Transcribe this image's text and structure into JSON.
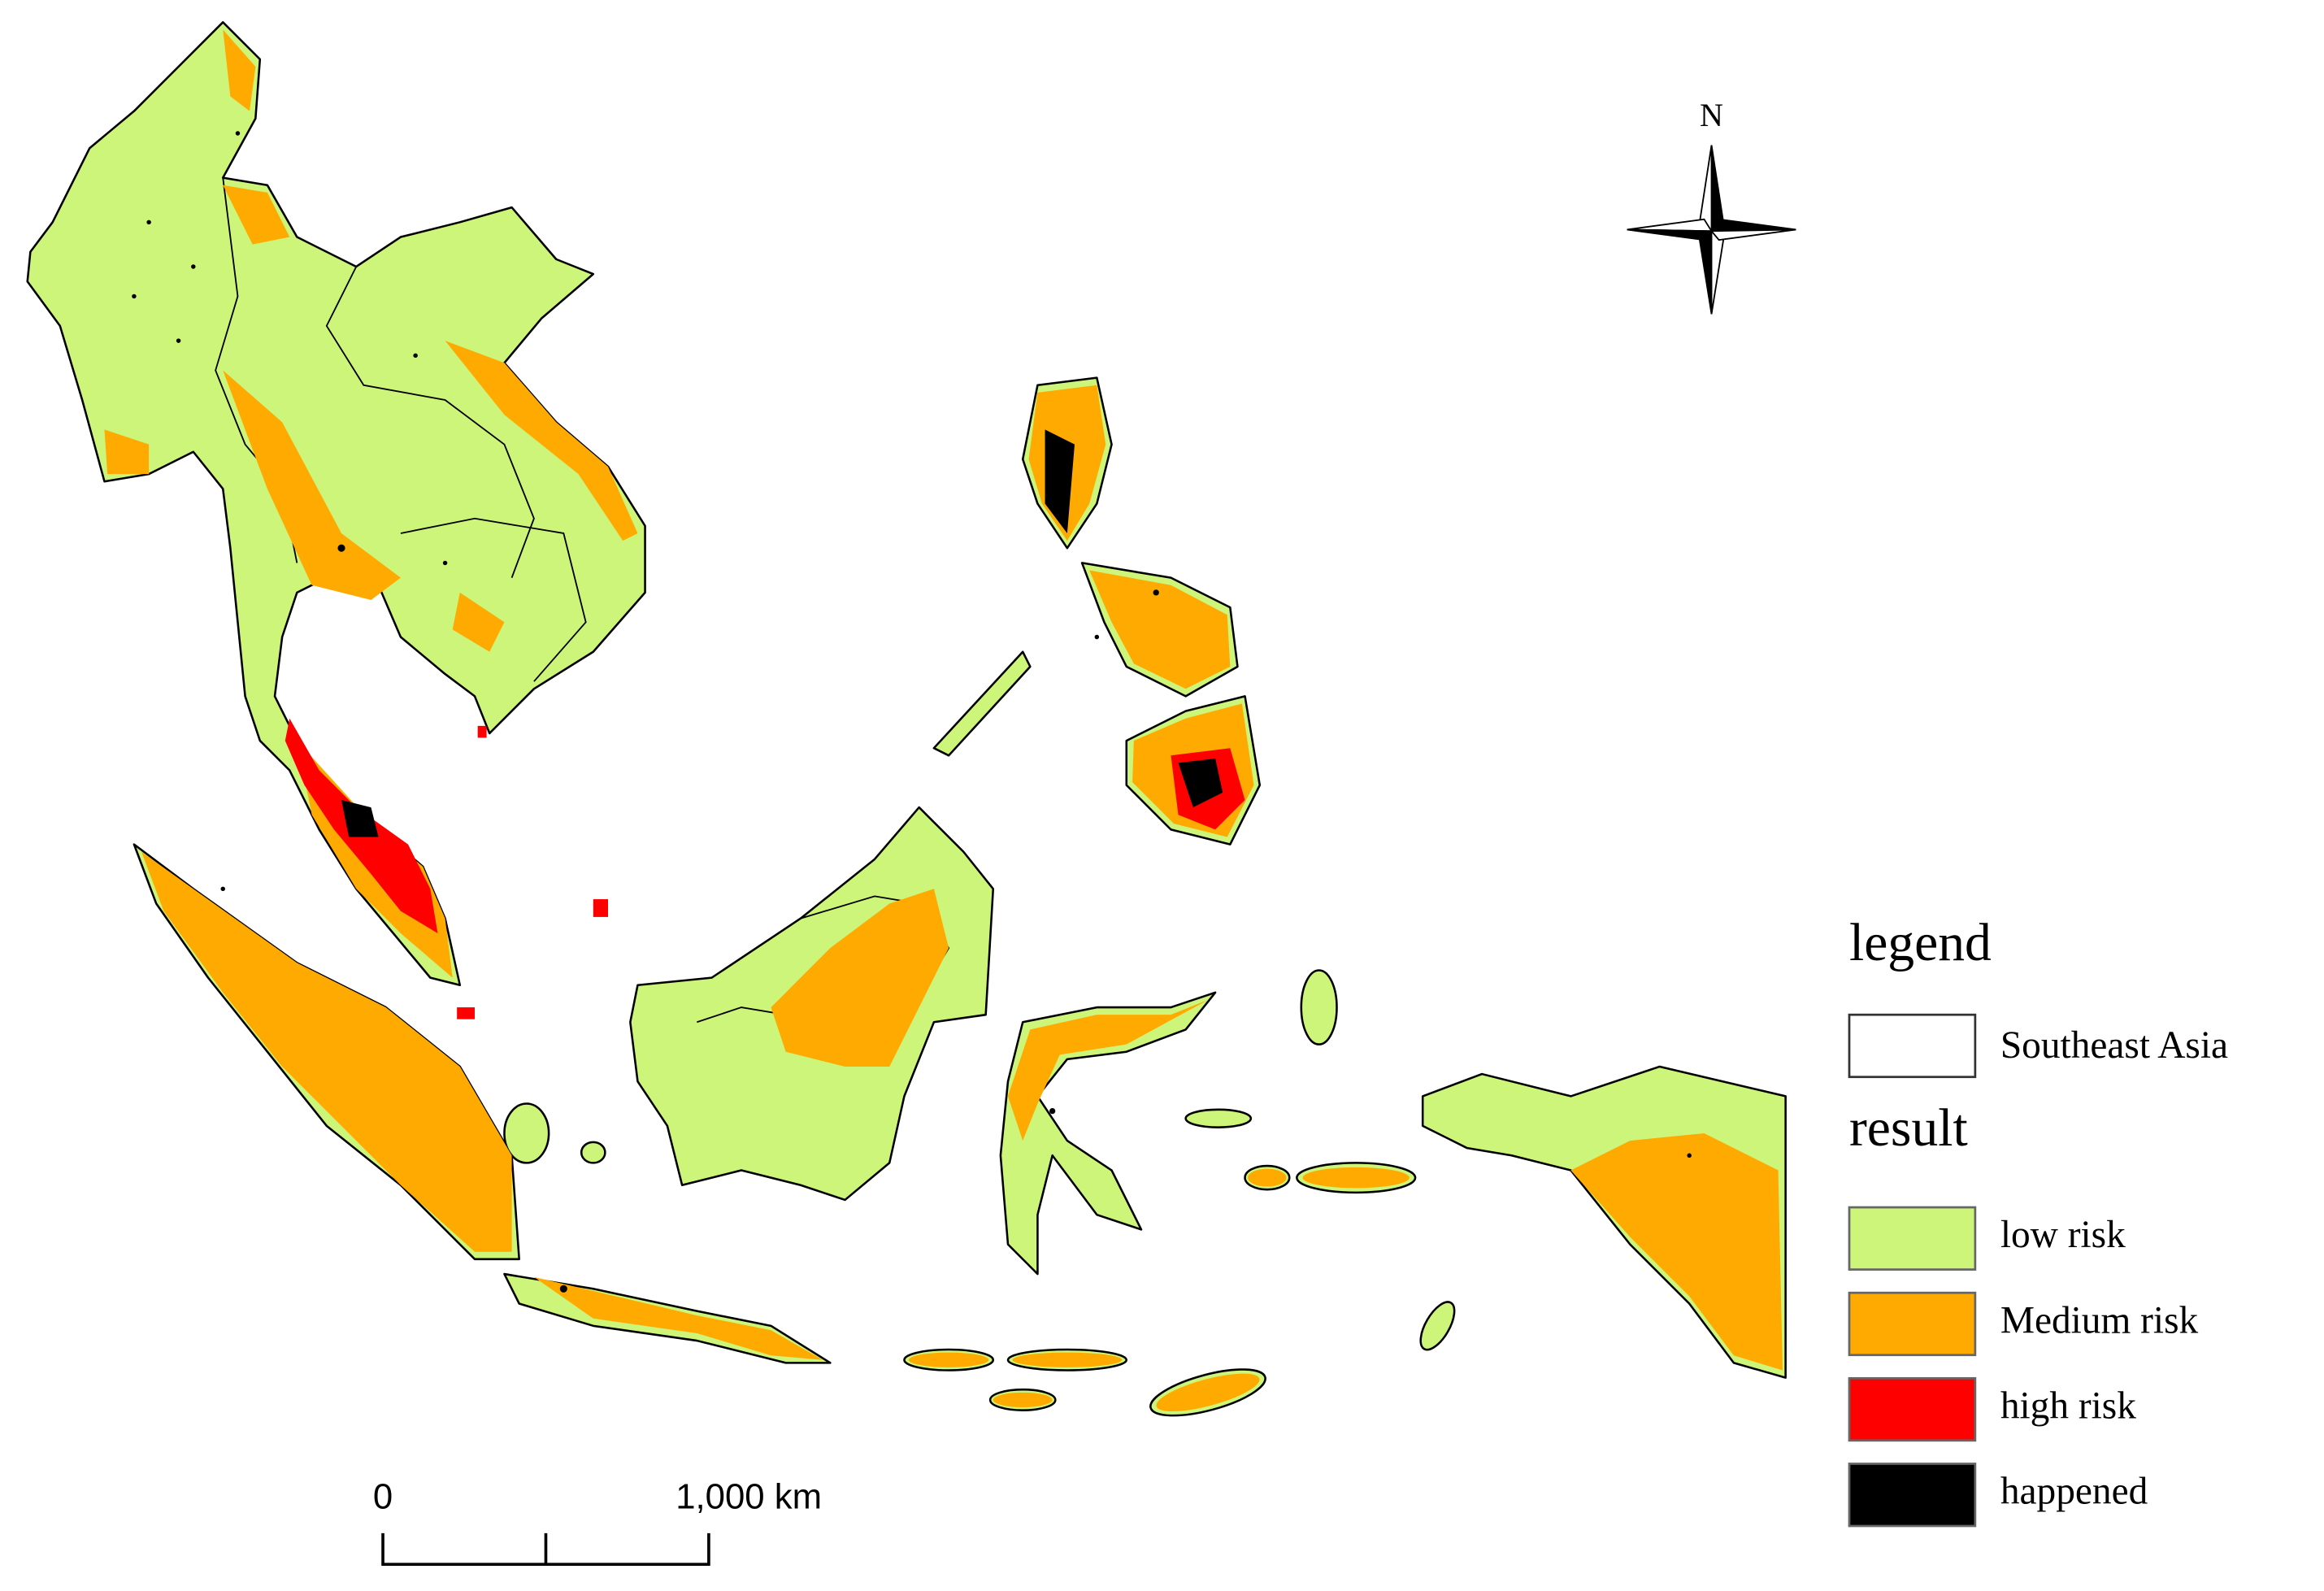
{
  "north_arrow": {
    "label": "N"
  },
  "scale_bar": {
    "start_label": "0",
    "end_label": "1,000 km"
  },
  "legend": {
    "title": "legend",
    "boundary": {
      "label": "Southeast Asia",
      "color": "#ffffff"
    },
    "result_title": "result",
    "items": [
      {
        "label": "low risk",
        "color": "#ccf57a"
      },
      {
        "label": "Medium risk",
        "color": "#ffaa00"
      },
      {
        "label": "high risk",
        "color": "#ff0000"
      },
      {
        "label": "happened",
        "color": "#000000"
      }
    ]
  }
}
